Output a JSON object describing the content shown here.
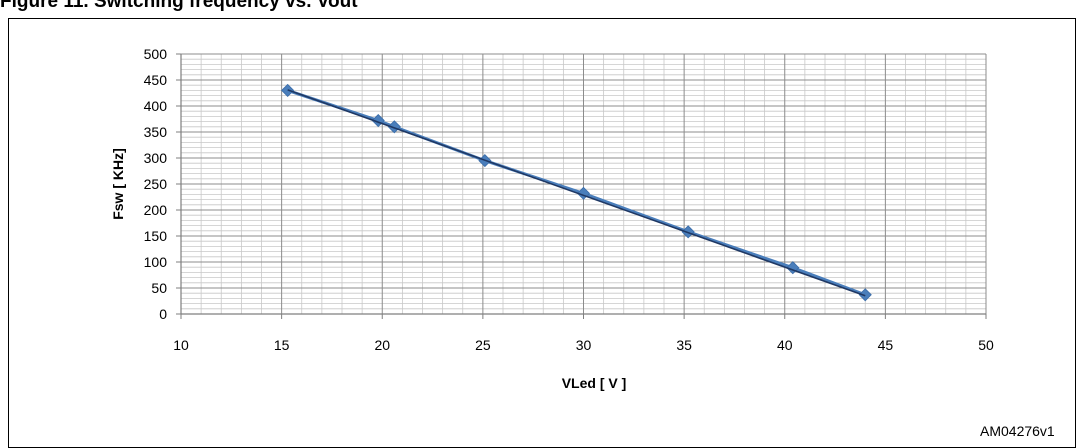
{
  "figure": {
    "caption": "Figure 11. Switching frequency vs. Vout",
    "id_label": "AM04276v1"
  },
  "chart_data": {
    "type": "line",
    "xlabel": "VLed [ V ]",
    "ylabel": "Fsw [ KHz]",
    "xlim": [
      10,
      50
    ],
    "ylim": [
      0,
      500
    ],
    "x_ticks": [
      10,
      15,
      20,
      25,
      30,
      35,
      40,
      45,
      50
    ],
    "y_ticks": [
      0,
      50,
      100,
      150,
      200,
      250,
      300,
      350,
      400,
      450,
      500
    ],
    "grid": true,
    "legend": "none",
    "series": [
      {
        "marker": "diamond",
        "color": "#4a7ebb",
        "x": [
          15.3,
          19.8,
          20.6,
          25.1,
          30.0,
          35.2,
          40.4,
          44.0
        ],
        "y": [
          430,
          372,
          360,
          295,
          232,
          158,
          89,
          37
        ]
      }
    ],
    "trendline": {
      "color": "#1f3864",
      "x": [
        15.3,
        44.0
      ],
      "y": [
        431,
        35
      ]
    }
  }
}
